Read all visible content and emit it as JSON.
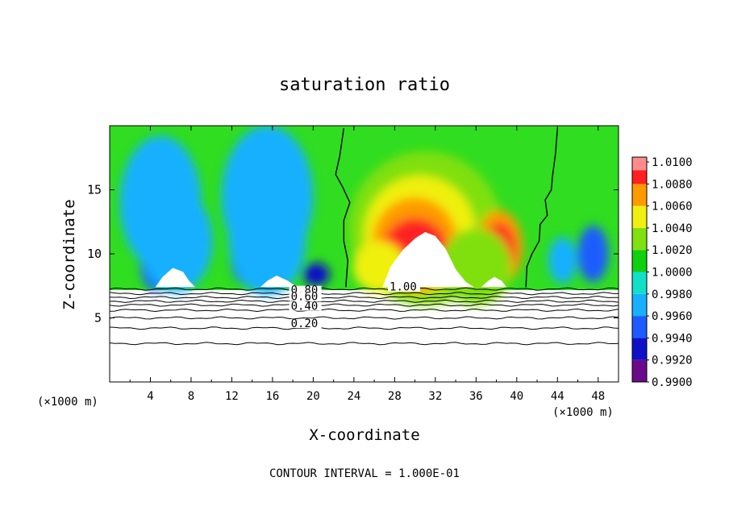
{
  "chart_data": {
    "type": "heatmap",
    "title": "saturation ratio",
    "xlabel": "X-coordinate",
    "ylabel": "Z-coordinate",
    "x_unit_left": "(×1000 m)",
    "x_unit_right": "(×1000 m)",
    "footer": "CONTOUR INTERVAL = 1.000E-01",
    "xlim": [
      0,
      50
    ],
    "ylim": [
      0,
      20
    ],
    "x_ticks": [
      4,
      8,
      12,
      16,
      20,
      24,
      28,
      32,
      36,
      40,
      44,
      48
    ],
    "y_ticks": [
      5,
      10,
      15
    ],
    "colorbar": {
      "levels": [
        0.99,
        0.992,
        0.994,
        0.996,
        0.998,
        1.0,
        1.002,
        1.004,
        1.006,
        1.008,
        1.01
      ],
      "labels": [
        "0.9900",
        "0.9920",
        "0.9940",
        "0.9960",
        "0.9980",
        "1.0000",
        "1.0020",
        "1.0040",
        "1.0060",
        "1.0080",
        "1.0100"
      ],
      "colors": [
        "#6a0a8a",
        "#1010c8",
        "#1c5cff",
        "#18b0ff",
        "#10e0c8",
        "#10d010",
        "#80e010",
        "#f0f010",
        "#ff9a00",
        "#ff2020",
        "#ff8c8c"
      ]
    },
    "background_color": "#30dd20",
    "contour_labels": [
      {
        "text": "1.00",
        "x": 27.5,
        "z": 7.25
      },
      {
        "text": "0.80",
        "x": 17.8,
        "z": 7.0
      },
      {
        "text": "0.60",
        "x": 17.8,
        "z": 6.5
      },
      {
        "text": "0.40",
        "x": 17.8,
        "z": 5.75
      },
      {
        "text": "0.20",
        "x": 17.8,
        "z": 4.4
      }
    ],
    "contour_levels_z": [
      7.25,
      6.9,
      6.6,
      6.3,
      6.0,
      5.6,
      5.0,
      4.2,
      3.0
    ],
    "saturated_boundaries": [
      {
        "name": "left",
        "points": [
          [
            23.0,
            19.8
          ],
          [
            22.6,
            17.6
          ],
          [
            22.2,
            16.2
          ],
          [
            22.9,
            15.2
          ],
          [
            23.6,
            14.0
          ],
          [
            23.0,
            12.6
          ],
          [
            23.0,
            11.0
          ],
          [
            23.4,
            9.5
          ],
          [
            23.2,
            7.4
          ]
        ]
      },
      {
        "name": "right",
        "points": [
          [
            44.0,
            19.8
          ],
          [
            43.8,
            17.8
          ],
          [
            43.5,
            16.0
          ],
          [
            43.4,
            15.0
          ],
          [
            42.8,
            14.2
          ],
          [
            43.0,
            13.0
          ],
          [
            42.3,
            12.3
          ],
          [
            42.2,
            11.0
          ],
          [
            41.5,
            10.0
          ],
          [
            41.0,
            9.0
          ],
          [
            40.9,
            7.4
          ]
        ]
      }
    ],
    "features": [
      {
        "kind": "dry",
        "level": 0.9915,
        "x": 6.2,
        "z": 9.1,
        "rx": 2.1,
        "rz": 1.4
      },
      {
        "kind": "dry",
        "level": 0.9925,
        "x": 16.3,
        "z": 9.3,
        "rx": 2.2,
        "rz": 1.5
      },
      {
        "kind": "dry",
        "level": 0.9935,
        "x": 20.3,
        "z": 8.4,
        "rx": 1.3,
        "rz": 0.9
      },
      {
        "kind": "dry",
        "level": 0.995,
        "x": 4.5,
        "z": 9.3,
        "rx": 1.5,
        "rz": 2.2
      },
      {
        "kind": "dry",
        "level": 0.9955,
        "x": 13.5,
        "z": 9.6,
        "rx": 1.6,
        "rz": 2.0
      },
      {
        "kind": "dry",
        "level": 0.9965,
        "x": 6.5,
        "z": 11.0,
        "rx": 3.6,
        "rz": 4.0
      },
      {
        "kind": "dry",
        "level": 0.9965,
        "x": 15.5,
        "z": 11.2,
        "rx": 3.8,
        "rz": 4.4
      },
      {
        "kind": "dry",
        "level": 0.9975,
        "x": 5.0,
        "z": 14.0,
        "rx": 4.0,
        "rz": 5.2
      },
      {
        "kind": "dry",
        "level": 0.9975,
        "x": 15.5,
        "z": 14.5,
        "rx": 4.5,
        "rz": 5.5
      },
      {
        "kind": "dry",
        "level": 0.9955,
        "x": 47.5,
        "z": 10.0,
        "rx": 1.5,
        "rz": 2.2
      },
      {
        "kind": "dry",
        "level": 0.997,
        "x": 44.5,
        "z": 9.5,
        "rx": 1.4,
        "rz": 1.8
      },
      {
        "kind": "moist",
        "level": 1.0025,
        "x": 31.0,
        "z": 12.0,
        "rx": 7.5,
        "rz": 6.0
      },
      {
        "kind": "moist",
        "level": 1.004,
        "x": 30.5,
        "z": 11.5,
        "rx": 5.5,
        "rz": 4.6
      },
      {
        "kind": "moist",
        "level": 1.006,
        "x": 30.0,
        "z": 10.8,
        "rx": 4.2,
        "rz": 3.6
      },
      {
        "kind": "moist",
        "level": 1.008,
        "x": 30.0,
        "z": 10.0,
        "rx": 3.3,
        "rz": 2.8
      },
      {
        "kind": "moist",
        "level": 1.006,
        "x": 38.3,
        "z": 10.5,
        "rx": 2.3,
        "rz": 2.9
      },
      {
        "kind": "moist",
        "level": 1.008,
        "x": 38.3,
        "z": 10.3,
        "rx": 1.6,
        "rz": 2.1
      },
      {
        "kind": "moist",
        "level": 1.004,
        "x": 26.5,
        "z": 9.0,
        "rx": 2.6,
        "rz": 2.0
      },
      {
        "kind": "moist",
        "level": 1.002,
        "x": 36.0,
        "z": 9.0,
        "rx": 3.5,
        "rz": 3.0
      }
    ],
    "cloud_regions": [
      {
        "name": "cloud-31",
        "points": [
          [
            26.8,
            7.4
          ],
          [
            27.6,
            9.0
          ],
          [
            28.8,
            10.3
          ],
          [
            30.0,
            11.2
          ],
          [
            31.0,
            11.7
          ],
          [
            32.0,
            11.4
          ],
          [
            33.0,
            10.4
          ],
          [
            34.0,
            8.8
          ],
          [
            35.0,
            7.8
          ],
          [
            35.8,
            7.4
          ]
        ]
      },
      {
        "name": "cloud-37",
        "points": [
          [
            36.5,
            7.4
          ],
          [
            37.2,
            7.9
          ],
          [
            37.8,
            8.2
          ],
          [
            38.5,
            7.9
          ],
          [
            39.0,
            7.4
          ]
        ]
      },
      {
        "name": "ridge-6",
        "points": [
          [
            4.5,
            7.4
          ],
          [
            5.2,
            8.2
          ],
          [
            6.2,
            8.9
          ],
          [
            7.2,
            8.6
          ],
          [
            7.8,
            7.9
          ],
          [
            8.4,
            7.4
          ]
        ]
      },
      {
        "name": "ridge-15",
        "points": [
          [
            14.8,
            7.4
          ],
          [
            15.5,
            7.9
          ],
          [
            16.4,
            8.3
          ],
          [
            17.5,
            7.9
          ],
          [
            18.4,
            7.4
          ]
        ]
      }
    ]
  }
}
